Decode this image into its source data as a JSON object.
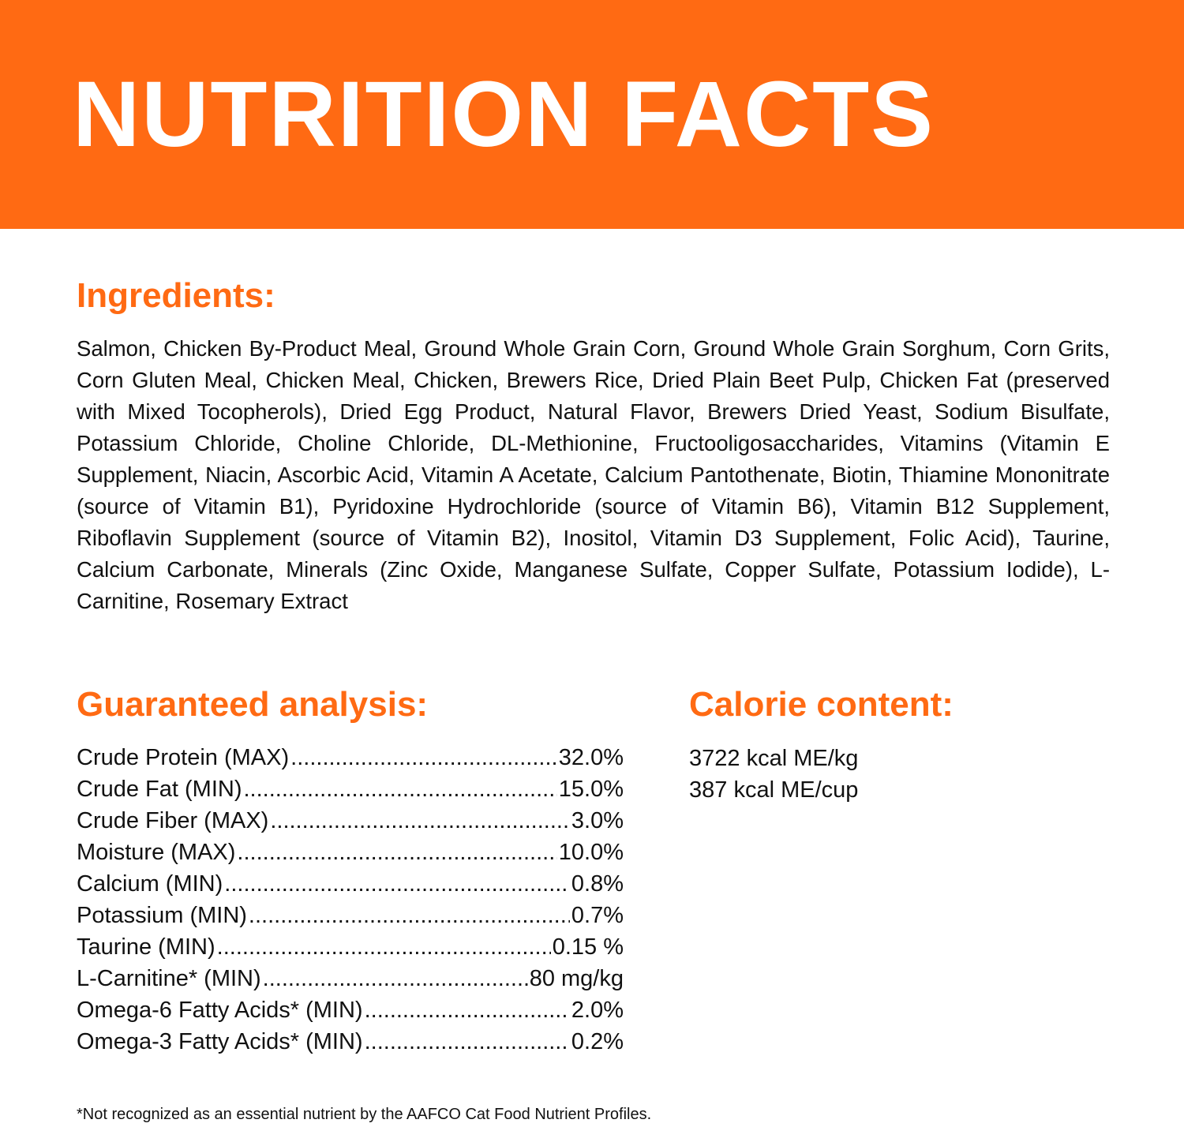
{
  "header": {
    "title": "NUTRITION FACTS",
    "color": "#FF6A13"
  },
  "ingredients": {
    "heading": "Ingredients:",
    "text": "Salmon, Chicken By-Product Meal, Ground Whole Grain Corn, Ground Whole Grain Sorghum, Corn Grits, Corn Gluten Meal, Chicken Meal, Chicken, Brewers Rice, Dried Plain Beet Pulp, Chicken Fat (preserved with Mixed Tocopherols), Dried Egg Product, Natural Flavor, Brewers Dried Yeast, Sodium Bisulfate, Potassium Chloride, Choline Chloride, DL-Methionine, Fructooligosaccharides, Vitamins (Vitamin E Supplement, Niacin, Ascorbic Acid, Vitamin A Acetate, Calcium Pantothenate, Biotin, Thiamine Mononitrate (source of Vitamin B1), Pyridoxine Hydrochloride (source of Vitamin B6), Vitamin B12 Supplement, Riboflavin Supplement (source of Vitamin B2), Inositol, Vitamin D3 Supplement, Folic Acid), Taurine, Calcium Carbonate, Minerals (Zinc Oxide, Manganese Sulfate, Copper Sulfate, Potassium Iodide), L-Carnitine, Rosemary Extract"
  },
  "analysis": {
    "heading": "Guaranteed analysis:",
    "rows": [
      {
        "label": "Crude Protein (MAX)",
        "value": "32.0%"
      },
      {
        "label": "Crude Fat (MIN)",
        "value": "15.0%"
      },
      {
        "label": "Crude Fiber (MAX)",
        "value": "3.0%"
      },
      {
        "label": "Moisture (MAX)",
        "value": "10.0%"
      },
      {
        "label": "Calcium (MIN)",
        "value": "0.8%"
      },
      {
        "label": "Potassium (MIN)",
        "value": "0.7%"
      },
      {
        "label": "Taurine (MIN)",
        "value": "0.15 %"
      },
      {
        "label": "L-Carnitine* (MIN)",
        "value": "80 mg/kg"
      },
      {
        "label": "Omega-6 Fatty Acids* (MIN)",
        "value": "2.0%"
      },
      {
        "label": "Omega-3 Fatty Acids* (MIN)",
        "value": "0.2%"
      }
    ]
  },
  "calorie": {
    "heading": "Calorie content:",
    "lines": [
      "3722 kcal ME/kg",
      "387 kcal ME/cup"
    ]
  },
  "footnote": "*Not recognized as an essential nutrient by the AAFCO Cat Food Nutrient Profiles."
}
